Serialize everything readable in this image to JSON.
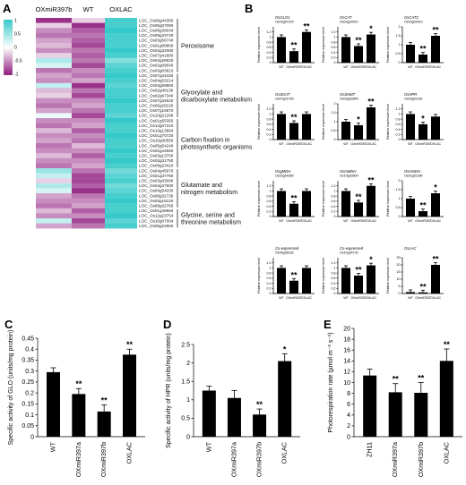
{
  "panels": {
    "A": {
      "label": "A",
      "columns": [
        "OXmiR397b",
        "WT",
        "OXLAC"
      ],
      "colorbar": {
        "ticks": [
          "1",
          "0.5",
          "0",
          "-0.5",
          "-1"
        ],
        "colors": {
          "high": "#35c9c9",
          "mid": "#ffffff",
          "low": "#8e1a7e"
        }
      },
      "genes": [
        "LOC_Os08g44360",
        "LOC_Os05g07090",
        "LOC_Os08g39034",
        "LOC_Os09g33740",
        "LOC_Os03g56740",
        "LOC_Os01g08800",
        "LOC_Os04g32080",
        "LOC_Os07g41800",
        "LOC_Os04g28620",
        "LOC_Os02g09540",
        "LOC_Os03g03910",
        "LOC_Os07g43430",
        "LOC_Os04g53214",
        "LOC_Os04g59860",
        "LOC_Os02g49130",
        "LOC_Os02g67340",
        "LOC_Os07g34520",
        "LOC_Os06g29220",
        "LOC_Os07g15970",
        "LOC_Os10g21268",
        "LOC_Os01g55350",
        "LOC_Os12g07210",
        "LOC_Os10g13694",
        "LOC_Os01g70720",
        "LOC_Os10g30550",
        "LOC_Os05g54240",
        "LOC_Os02g44550",
        "LOC_Os03g13700",
        "LOC_Os03g31750",
        "LOC_Os09g23410",
        "LOC_Os04g45970",
        "LOC_Os01g37760",
        "LOC_Os03g33090",
        "LOC_Os04g37500",
        "LOC_Os04g54030",
        "LOC_Os08g32730",
        "LOC_Os03g18120",
        "LOC_Os08g32780",
        "LOC_Os01g48960",
        "LOC_Os12g23754",
        "LOC_Os10g07004",
        "LOC_Os05g22960"
      ],
      "pathways": [
        {
          "name": "Peroxisome",
          "lines": [
            "Peroxisome"
          ]
        },
        {
          "name": "Glyoxylate and dicarboxylate metabolism",
          "lines": [
            "Glyoxylate and",
            "dicarboxylate metabolism"
          ]
        },
        {
          "name": "Carbon fixation in photosynthetic organisms",
          "lines": [
            "Carbon fixation in",
            "photosynthetic organisms"
          ]
        },
        {
          "name": "Glutamate and nitrogen metabolism",
          "lines": [
            "Glutamate and",
            "nitrogen metabolism"
          ]
        },
        {
          "name": "Glycine, serine and threonine metabolism",
          "lines": [
            "Glycine, serine and",
            "threonine metabolism"
          ]
        }
      ],
      "heat_values": [
        [
          -0.9,
          -0.2,
          0.9
        ],
        [
          -0.2,
          -0.9,
          0.9
        ],
        [
          -0.5,
          -0.7,
          1.0
        ],
        [
          -0.6,
          -0.6,
          0.9
        ],
        [
          -0.4,
          -0.7,
          0.9
        ],
        [
          -0.3,
          -0.8,
          0.9
        ],
        [
          -0.5,
          -0.6,
          1.0
        ],
        [
          -0.2,
          -0.7,
          0.9
        ],
        [
          0.4,
          -0.6,
          0.6
        ],
        [
          0.2,
          -0.8,
          0.8
        ],
        [
          -0.6,
          -0.5,
          0.9
        ],
        [
          -0.4,
          -0.6,
          1.0
        ],
        [
          -0.5,
          -0.4,
          0.9
        ],
        [
          0.3,
          -0.9,
          0.8
        ],
        [
          -0.3,
          -0.6,
          0.9
        ],
        [
          -0.2,
          -0.8,
          0.9
        ],
        [
          -0.5,
          -0.5,
          1.0
        ],
        [
          -0.6,
          -0.4,
          0.9
        ],
        [
          -0.4,
          -0.6,
          0.9
        ],
        [
          0.1,
          -0.8,
          0.8
        ],
        [
          -0.5,
          -0.5,
          1.0
        ],
        [
          -0.6,
          -0.4,
          0.9
        ],
        [
          -0.3,
          -0.7,
          0.9
        ],
        [
          -0.5,
          -0.5,
          1.0
        ],
        [
          -0.4,
          -0.6,
          0.9
        ],
        [
          -0.6,
          -0.3,
          0.9
        ],
        [
          -0.5,
          -0.5,
          1.0
        ],
        [
          -0.3,
          -0.7,
          0.9
        ],
        [
          -0.5,
          -0.5,
          1.0
        ],
        [
          -0.6,
          -0.4,
          0.9
        ],
        [
          0.5,
          -0.6,
          0.7
        ],
        [
          0.3,
          -0.8,
          0.8
        ],
        [
          -0.2,
          -0.8,
          0.9
        ],
        [
          0.4,
          -0.7,
          0.7
        ],
        [
          0.2,
          -0.9,
          0.8
        ],
        [
          -0.4,
          -0.6,
          0.9
        ],
        [
          -0.5,
          -0.5,
          1.0
        ],
        [
          -0.6,
          -0.4,
          0.9
        ],
        [
          -0.3,
          -0.7,
          0.9
        ],
        [
          -0.5,
          -0.5,
          1.0
        ],
        [
          0.3,
          -0.8,
          0.8
        ],
        [
          -0.4,
          -0.6,
          0.9
        ]
      ]
    },
    "B": {
      "label": "B",
      "ylabel": "Relative expression level",
      "categories": [
        "WT",
        "OXmiR397",
        "OXLAC"
      ],
      "charts": [
        {
          "title": "OsGLO1",
          "subtitle": "Os03g57220",
          "values": [
            1.0,
            0.45,
            1.2
          ],
          "ymax": 1.4,
          "ticks": [
            0,
            0.2,
            0.4,
            0.6,
            0.8,
            1.0,
            1.2
          ],
          "stars": [
            "",
            "**",
            "**"
          ]
        },
        {
          "title": "OsCAT",
          "subtitle": "Os03g03910",
          "values": [
            1.0,
            0.65,
            1.1
          ],
          "ymax": 1.4,
          "ticks": [
            0,
            0.2,
            0.4,
            0.6,
            0.8,
            1.0,
            1.2
          ],
          "stars": [
            "",
            "**",
            "*"
          ]
        },
        {
          "title": "OsCATC",
          "subtitle": "Os03g03910",
          "values": [
            1.0,
            0.45,
            1.5
          ],
          "ymax": 2.0,
          "ticks": [
            0,
            0.5,
            1.0,
            1.5,
            2.0
          ],
          "stars": [
            "",
            "**",
            "**"
          ]
        },
        {
          "title": "OsSGAT",
          "subtitle": "Os07g01760",
          "values": [
            1.0,
            0.65,
            1.0
          ],
          "ymax": 1.4,
          "ticks": [
            0,
            0.2,
            0.4,
            0.6,
            0.8,
            1.0,
            1.2
          ],
          "stars": [
            "",
            "**",
            ""
          ]
        },
        {
          "title": "OsSHMT",
          "subtitle": "Os03g52840",
          "values": [
            1.0,
            0.8,
            1.8
          ],
          "ymax": 2.0,
          "ticks": [
            0,
            0.5,
            1.0,
            1.5,
            2.0
          ],
          "stars": [
            "",
            "*",
            "**"
          ]
        },
        {
          "title": "OsHPR",
          "subtitle": "Os02g01150",
          "values": [
            1.0,
            0.6,
            0.9
          ],
          "ymax": 1.4,
          "ticks": [
            0,
            0.2,
            0.4,
            0.6,
            0.8,
            1.0,
            1.2
          ],
          "stars": [
            "",
            "*",
            ""
          ]
        },
        {
          "title": "OsgMDH",
          "subtitle": "Os02g54280",
          "values": [
            1.0,
            0.5,
            1.0
          ],
          "ymax": 1.4,
          "ticks": [
            0,
            0.2,
            0.4,
            0.6,
            0.8,
            1.0,
            1.2
          ],
          "stars": [
            "",
            "**",
            ""
          ]
        },
        {
          "title": "OsmMDH",
          "subtitle": "Os10g33800",
          "values": [
            1.0,
            0.55,
            1.2
          ],
          "ymax": 1.4,
          "ticks": [
            0,
            0.2,
            0.4,
            0.6,
            0.8,
            1.0,
            1.2
          ],
          "stars": [
            "",
            "**",
            "**"
          ]
        },
        {
          "title": "OsmNDH",
          "subtitle": "Os01g61380",
          "values": [
            1.0,
            0.3,
            1.3
          ],
          "ymax": 2.0,
          "ticks": [
            0,
            0.5,
            1.0,
            1.5,
            2.0
          ],
          "stars": [
            "",
            "**",
            "*"
          ]
        },
        {
          "title": "Co-expressed",
          "subtitle": "Os04g36230",
          "values": [
            1.0,
            0.5,
            1.0
          ],
          "ymax": 1.4,
          "ticks": [
            0,
            0.2,
            0.4,
            0.6,
            0.8,
            1.0,
            1.2
          ],
          "stars": [
            "",
            "**",
            ""
          ]
        },
        {
          "title": "Co-expressed",
          "subtitle": "Os10g34720",
          "values": [
            1.0,
            0.7,
            1.1
          ],
          "ymax": 1.4,
          "ticks": [
            0,
            0.2,
            0.4,
            0.6,
            0.8,
            1.0,
            1.2
          ],
          "stars": [
            "",
            "**",
            "*"
          ]
        },
        {
          "title": "OsLAC",
          "subtitle": "",
          "values": [
            1.0,
            0.8,
            20.0
          ],
          "ymax": 25,
          "ticks": [
            0,
            5,
            10,
            15,
            20,
            25
          ],
          "stars": [
            "",
            "**",
            "**"
          ]
        }
      ]
    },
    "C": {
      "label": "C",
      "ylabel": "Specific activity of GLO (units/mg protein)",
      "categories": [
        "WT",
        "OXmiR397a",
        "OXmiR397b",
        "OXLAC"
      ],
      "values": [
        0.295,
        0.195,
        0.115,
        0.375
      ],
      "errors": [
        0.02,
        0.025,
        0.03,
        0.025
      ],
      "stars": [
        "",
        "**",
        "**",
        "**"
      ],
      "ymin": 0,
      "ymax": 0.45,
      "ticks": [
        "0",
        "0.05",
        "0.1",
        "0.15",
        "0.2",
        "0.25",
        "0.3",
        "0.35",
        "0.4",
        "0.45"
      ]
    },
    "D": {
      "label": "D",
      "ylabel": "Specific activity of HPR (units/mg protein)",
      "categories": [
        "WT",
        "OXmiR397a",
        "OXmiR397b",
        "OXLAC"
      ],
      "values": [
        1.25,
        1.05,
        0.6,
        2.05
      ],
      "errors": [
        0.12,
        0.2,
        0.15,
        0.2
      ],
      "stars": [
        "",
        "",
        "**",
        "*"
      ],
      "ymin": 0,
      "ymax": 2.5,
      "ticks": [
        "0",
        "0.5",
        "1",
        "1.5",
        "2",
        "2.5"
      ]
    },
    "E": {
      "label": "E",
      "ylabel": "Photorespiration rate (µmol m⁻² s⁻¹)",
      "categories": [
        "ZH11",
        "OXmiR397a",
        "OXmiR397b",
        "OXLAC"
      ],
      "values": [
        11.3,
        8.2,
        8.1,
        14.0
      ],
      "errors": [
        1.2,
        1.6,
        1.9,
        2.2
      ],
      "stars": [
        "",
        "**",
        "**",
        "**"
      ],
      "ymin": 0,
      "ymax": 20,
      "ticks": [
        "0",
        "2",
        "4",
        "6",
        "8",
        "10",
        "12",
        "14",
        "16",
        "18",
        "20"
      ]
    }
  }
}
